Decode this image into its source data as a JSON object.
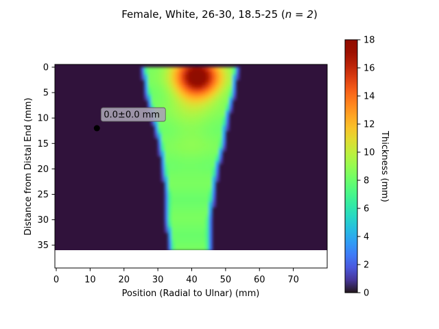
{
  "chart_data": {
    "type": "heatmap",
    "title": "Female, White, 26-30, 18.5-25 (n = 2)",
    "title_prefix": "Female, White, 26-30, 18.5-25 (",
    "title_n": "n = 2",
    "title_suffix": ")",
    "xlabel": "Position (Radial to Ulnar) (mm)",
    "ylabel": "Distance from Distal End (mm)",
    "colorbar_label": "Thickness (mm)",
    "colormap": "turbo",
    "xlim": [
      0,
      80
    ],
    "ylim_extent": [
      0,
      40
    ],
    "data_y_range": [
      0,
      36
    ],
    "xticks": [
      0,
      10,
      20,
      30,
      40,
      50,
      60,
      70
    ],
    "yticks": [
      0,
      5,
      10,
      15,
      20,
      25,
      30,
      35
    ],
    "colorbar_range": [
      0,
      18
    ],
    "colorbar_ticks": [
      0,
      2,
      4,
      6,
      8,
      10,
      12,
      14,
      16,
      18
    ],
    "shape_profile": [
      {
        "y": 0,
        "left": 25,
        "right": 54
      },
      {
        "y": 5,
        "left": 26,
        "right": 53
      },
      {
        "y": 10,
        "left": 28,
        "right": 51
      },
      {
        "y": 15,
        "left": 30,
        "right": 50
      },
      {
        "y": 20,
        "left": 31,
        "right": 48
      },
      {
        "y": 25,
        "left": 32,
        "right": 47
      },
      {
        "y": 30,
        "left": 32,
        "right": 46
      },
      {
        "y": 35,
        "left": 33,
        "right": 46
      }
    ],
    "peak": {
      "x": 42,
      "y": 2,
      "value": 17
    },
    "annotation": {
      "x": 12,
      "y": 12,
      "text": "0.0±0.0 mm"
    },
    "background_value": 0
  },
  "colors": {
    "background_cell": "#30123b",
    "annotation_box": "#a9a2b4",
    "marker": "#000000"
  }
}
